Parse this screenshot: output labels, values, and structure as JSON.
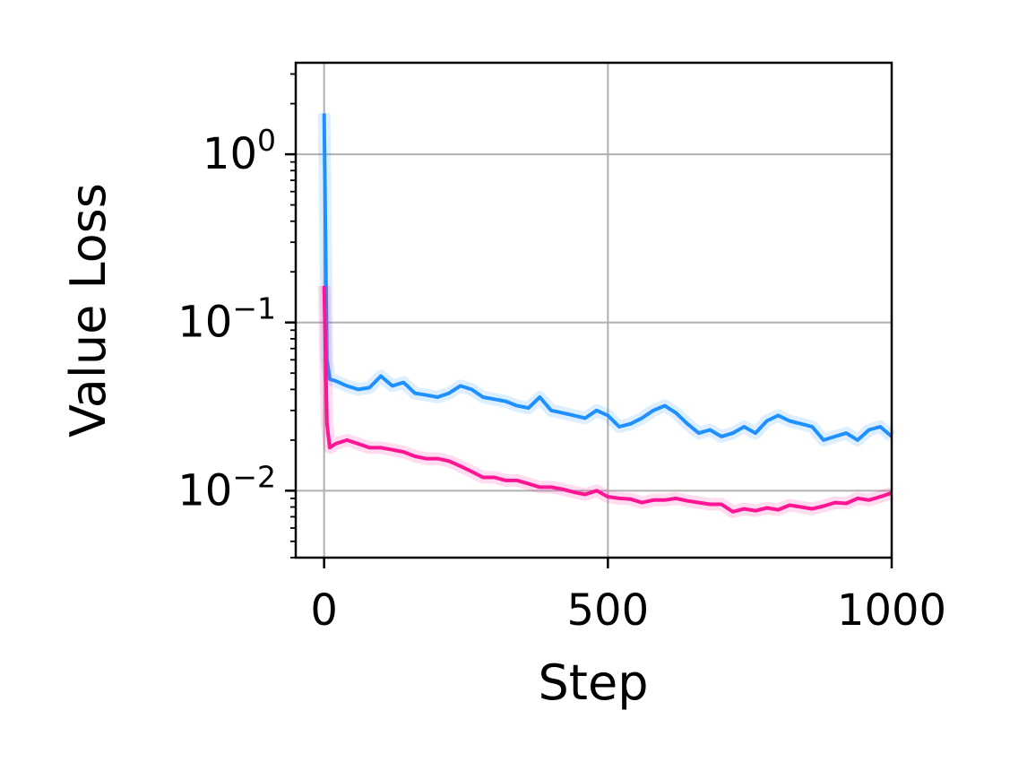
{
  "chart_data": {
    "type": "line",
    "title": "",
    "xlabel": "Step",
    "ylabel": "Value Loss",
    "xlim": [
      -50,
      1000
    ],
    "ylim": [
      0.004,
      3.5
    ],
    "yscale": "log",
    "grid": true,
    "x_ticks": [
      {
        "value": 0,
        "label": "0"
      },
      {
        "value": 500,
        "label": "500"
      },
      {
        "value": 1000,
        "label": "1000"
      }
    ],
    "y_ticks": [
      {
        "value": 1,
        "base": "10",
        "exponent": "0"
      },
      {
        "value": 0.1,
        "base": "10",
        "exponent": "−1"
      },
      {
        "value": 0.01,
        "base": "10",
        "exponent": "−2"
      }
    ],
    "series": [
      {
        "color": "#1e90ff",
        "x": [
          0,
          5,
          10,
          20,
          40,
          60,
          80,
          100,
          120,
          140,
          160,
          180,
          200,
          220,
          240,
          260,
          280,
          300,
          320,
          340,
          360,
          380,
          400,
          420,
          440,
          460,
          480,
          500,
          520,
          540,
          560,
          580,
          600,
          620,
          640,
          660,
          680,
          700,
          720,
          740,
          760,
          780,
          800,
          820,
          840,
          860,
          880,
          900,
          920,
          940,
          960,
          980,
          1000
        ],
        "values": [
          1.75,
          0.06,
          0.046,
          0.045,
          0.042,
          0.04,
          0.041,
          0.048,
          0.042,
          0.044,
          0.038,
          0.037,
          0.036,
          0.038,
          0.042,
          0.04,
          0.036,
          0.035,
          0.034,
          0.032,
          0.031,
          0.036,
          0.03,
          0.029,
          0.028,
          0.027,
          0.03,
          0.028,
          0.024,
          0.025,
          0.027,
          0.03,
          0.032,
          0.029,
          0.025,
          0.022,
          0.023,
          0.021,
          0.022,
          0.024,
          0.022,
          0.026,
          0.028,
          0.026,
          0.025,
          0.024,
          0.02,
          0.021,
          0.022,
          0.02,
          0.023,
          0.024,
          0.021
        ]
      },
      {
        "color": "#ff1493",
        "x": [
          0,
          5,
          10,
          20,
          40,
          60,
          80,
          100,
          120,
          140,
          160,
          180,
          200,
          220,
          240,
          260,
          280,
          300,
          320,
          340,
          360,
          380,
          400,
          420,
          440,
          460,
          480,
          500,
          520,
          540,
          560,
          580,
          600,
          620,
          640,
          660,
          680,
          700,
          720,
          740,
          760,
          780,
          800,
          820,
          840,
          860,
          880,
          900,
          920,
          940,
          960,
          980,
          1000
        ],
        "values": [
          0.165,
          0.025,
          0.018,
          0.019,
          0.02,
          0.019,
          0.018,
          0.018,
          0.0175,
          0.017,
          0.016,
          0.0155,
          0.0155,
          0.015,
          0.014,
          0.013,
          0.012,
          0.012,
          0.0115,
          0.0115,
          0.011,
          0.0105,
          0.0105,
          0.0102,
          0.0098,
          0.0095,
          0.01,
          0.0092,
          0.009,
          0.0089,
          0.0085,
          0.0088,
          0.0088,
          0.009,
          0.0087,
          0.0085,
          0.0083,
          0.0083,
          0.0075,
          0.0078,
          0.0076,
          0.0079,
          0.0077,
          0.0082,
          0.008,
          0.0078,
          0.0081,
          0.0085,
          0.0084,
          0.009,
          0.0088,
          0.0092,
          0.0097
        ]
      }
    ]
  }
}
